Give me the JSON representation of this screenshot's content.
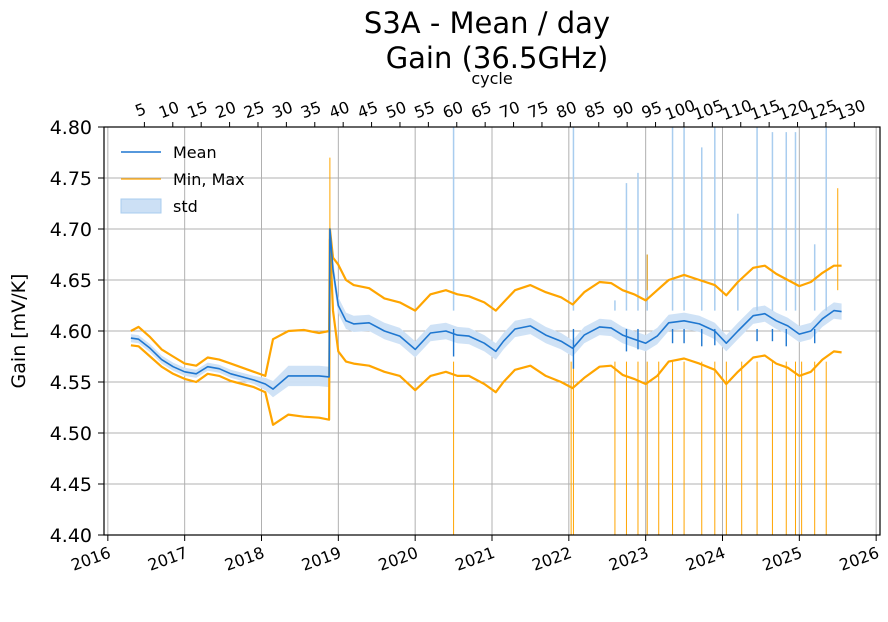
{
  "chart_data": {
    "type": "line",
    "title_line1": "S3A - Mean / day",
    "title_line2": "Gain (36.5GHz)",
    "ylabel": "Gain [mV/K]",
    "top_xlabel": "cycle",
    "ylim": [
      4.4,
      4.8
    ],
    "xlim": [
      2015.95,
      2026.05
    ],
    "y_ticks": [
      "4.40",
      "4.45",
      "4.50",
      "4.55",
      "4.60",
      "4.65",
      "4.70",
      "4.75",
      "4.80"
    ],
    "x_ticks": [
      "2016",
      "2017",
      "2018",
      "2019",
      "2020",
      "2021",
      "2022",
      "2023",
      "2024",
      "2025",
      "2026"
    ],
    "top_ticks": [
      "5",
      "10",
      "15",
      "20",
      "25",
      "30",
      "35",
      "40",
      "45",
      "50",
      "55",
      "60",
      "65",
      "70",
      "75",
      "80",
      "85",
      "90",
      "95",
      "100",
      "105",
      "110",
      "115",
      "120",
      "125",
      "130"
    ],
    "cycle_1_start_year": 2016.18,
    "days_per_cycle": 27,
    "legend": [
      "Mean",
      "Min, Max",
      "std"
    ],
    "colors": {
      "mean": "#1f77d0",
      "minmax": "#ffa500",
      "std": "#a9cdef",
      "grid": "#b0b0b0"
    },
    "mean": {
      "x": [
        2016.3,
        2016.4,
        2016.55,
        2016.7,
        2016.85,
        2017.0,
        2017.15,
        2017.3,
        2017.45,
        2017.6,
        2017.75,
        2017.9,
        2018.05,
        2018.15,
        2018.35,
        2018.55,
        2018.75,
        2018.88,
        2018.89,
        2018.93,
        2019.0,
        2019.1,
        2019.2,
        2019.4,
        2019.6,
        2019.8,
        2020.0,
        2020.2,
        2020.4,
        2020.55,
        2020.7,
        2020.9,
        2021.05,
        2021.15,
        2021.3,
        2021.5,
        2021.7,
        2021.9,
        2022.05,
        2022.2,
        2022.4,
        2022.55,
        2022.7,
        2022.85,
        2023.0,
        2023.15,
        2023.3,
        2023.5,
        2023.7,
        2023.9,
        2024.05,
        2024.2,
        2024.4,
        2024.55,
        2024.7,
        2024.85,
        2025.0,
        2025.15,
        2025.3,
        2025.45,
        2025.55
      ],
      "y": [
        4.593,
        4.592,
        4.583,
        4.572,
        4.565,
        4.56,
        4.558,
        4.565,
        4.563,
        4.558,
        4.555,
        4.552,
        4.548,
        4.543,
        4.556,
        4.556,
        4.556,
        4.555,
        4.7,
        4.66,
        4.625,
        4.61,
        4.607,
        4.608,
        4.6,
        4.595,
        4.582,
        4.598,
        4.6,
        4.596,
        4.595,
        4.588,
        4.58,
        4.59,
        4.602,
        4.605,
        4.596,
        4.59,
        4.583,
        4.596,
        4.604,
        4.603,
        4.596,
        4.592,
        4.588,
        4.595,
        4.608,
        4.61,
        4.607,
        4.6,
        4.588,
        4.6,
        4.615,
        4.617,
        4.61,
        4.605,
        4.597,
        4.6,
        4.612,
        4.62,
        4.619
      ]
    },
    "std_half_width": [
      0.004,
      0.004,
      0.004,
      0.004,
      0.004,
      0.004,
      0.004,
      0.004,
      0.004,
      0.004,
      0.004,
      0.004,
      0.006,
      0.008,
      0.01,
      0.01,
      0.01,
      0.01,
      0.01,
      0.01,
      0.008,
      0.008,
      0.008,
      0.008,
      0.008,
      0.008,
      0.008,
      0.008,
      0.008,
      0.008,
      0.008,
      0.008,
      0.008,
      0.008,
      0.008,
      0.008,
      0.008,
      0.008,
      0.008,
      0.008,
      0.008,
      0.008,
      0.008,
      0.008,
      0.008,
      0.008,
      0.008,
      0.008,
      0.008,
      0.008,
      0.008,
      0.008,
      0.008,
      0.008,
      0.008,
      0.008,
      0.008,
      0.008,
      0.008,
      0.008,
      0.008
    ],
    "max": {
      "x": [
        2016.3,
        2016.4,
        2016.55,
        2016.7,
        2016.85,
        2017.0,
        2017.15,
        2017.3,
        2017.45,
        2017.6,
        2017.75,
        2017.9,
        2018.05,
        2018.15,
        2018.35,
        2018.55,
        2018.75,
        2018.88,
        2018.89,
        2018.93,
        2019.0,
        2019.1,
        2019.2,
        2019.4,
        2019.6,
        2019.8,
        2020.0,
        2020.2,
        2020.4,
        2020.55,
        2020.7,
        2020.9,
        2021.05,
        2021.15,
        2021.3,
        2021.5,
        2021.7,
        2021.9,
        2022.05,
        2022.2,
        2022.4,
        2022.55,
        2022.7,
        2022.85,
        2023.0,
        2023.15,
        2023.3,
        2023.5,
        2023.7,
        2023.9,
        2024.05,
        2024.2,
        2024.4,
        2024.55,
        2024.7,
        2024.85,
        2025.0,
        2025.15,
        2025.3,
        2025.45,
        2025.55
      ],
      "y": [
        4.6,
        4.604,
        4.594,
        4.582,
        4.575,
        4.568,
        4.566,
        4.574,
        4.572,
        4.568,
        4.564,
        4.56,
        4.556,
        4.592,
        4.6,
        4.601,
        4.598,
        4.6,
        4.7,
        4.672,
        4.665,
        4.65,
        4.645,
        4.642,
        4.632,
        4.628,
        4.62,
        4.636,
        4.64,
        4.636,
        4.634,
        4.628,
        4.62,
        4.628,
        4.64,
        4.645,
        4.638,
        4.633,
        4.626,
        4.638,
        4.648,
        4.647,
        4.64,
        4.636,
        4.63,
        4.64,
        4.65,
        4.655,
        4.65,
        4.645,
        4.635,
        4.648,
        4.662,
        4.664,
        4.656,
        4.65,
        4.644,
        4.648,
        4.657,
        4.664,
        4.664
      ]
    },
    "min": {
      "x": [
        2016.3,
        2016.4,
        2016.55,
        2016.7,
        2016.85,
        2017.0,
        2017.15,
        2017.3,
        2017.45,
        2017.6,
        2017.75,
        2017.9,
        2018.05,
        2018.15,
        2018.35,
        2018.55,
        2018.75,
        2018.88,
        2018.89,
        2018.93,
        2019.0,
        2019.1,
        2019.2,
        2019.4,
        2019.6,
        2019.8,
        2020.0,
        2020.2,
        2020.4,
        2020.55,
        2020.7,
        2020.9,
        2021.05,
        2021.15,
        2021.3,
        2021.5,
        2021.7,
        2021.9,
        2022.05,
        2022.2,
        2022.4,
        2022.55,
        2022.7,
        2022.85,
        2023.0,
        2023.15,
        2023.3,
        2023.5,
        2023.7,
        2023.9,
        2024.05,
        2024.2,
        2024.4,
        2024.55,
        2024.7,
        2024.85,
        2025.0,
        2025.15,
        2025.3,
        2025.45,
        2025.55
      ],
      "y": [
        4.586,
        4.585,
        4.575,
        4.565,
        4.558,
        4.553,
        4.55,
        4.558,
        4.556,
        4.551,
        4.548,
        4.545,
        4.54,
        4.508,
        4.518,
        4.516,
        4.515,
        4.513,
        4.69,
        4.62,
        4.58,
        4.57,
        4.568,
        4.566,
        4.56,
        4.556,
        4.542,
        4.556,
        4.56,
        4.556,
        4.556,
        4.548,
        4.54,
        4.55,
        4.562,
        4.566,
        4.556,
        4.55,
        4.544,
        4.554,
        4.565,
        4.566,
        4.557,
        4.553,
        4.548,
        4.556,
        4.57,
        4.573,
        4.568,
        4.562,
        4.548,
        4.56,
        4.574,
        4.576,
        4.568,
        4.564,
        4.556,
        4.56,
        4.572,
        4.58,
        4.579
      ]
    },
    "min_spikes": {
      "x": [
        2020.5,
        2022.03,
        2022.06,
        2022.6,
        2022.75,
        2022.9,
        2023.02,
        2023.17,
        2023.35,
        2023.5,
        2023.73,
        2023.9,
        2024.05,
        2024.25,
        2024.45,
        2024.65,
        2024.83,
        2024.95,
        2025.03,
        2025.2,
        2025.35
      ],
      "y": [
        4.4,
        4.4,
        4.4,
        4.4,
        4.4,
        4.4,
        4.4,
        4.4,
        4.4,
        4.4,
        4.4,
        4.4,
        4.4,
        4.4,
        4.4,
        4.4,
        4.4,
        4.4,
        4.4,
        4.4,
        4.4
      ]
    },
    "max_spikes": {
      "x": [
        2018.89,
        2023.02,
        2025.5
      ],
      "y": [
        4.77,
        4.675,
        4.74
      ]
    },
    "std_spikes": {
      "x": [
        2020.5,
        2022.06,
        2022.6,
        2022.75,
        2022.9,
        2023.02,
        2023.35,
        2023.5,
        2023.73,
        2023.9,
        2024.2,
        2024.45,
        2024.65,
        2024.83,
        2024.95,
        2025.2,
        2025.35
      ],
      "y": [
        4.8,
        4.8,
        4.63,
        4.745,
        4.755,
        4.675,
        4.8,
        4.8,
        4.78,
        4.8,
        4.715,
        4.8,
        4.795,
        4.795,
        4.795,
        4.685,
        4.8
      ]
    },
    "mean_dips": {
      "x": [
        2020.5,
        2022.06,
        2022.75,
        2022.9,
        2023.35,
        2023.5,
        2023.73,
        2023.9,
        2024.45,
        2024.65,
        2024.83,
        2025.2
      ],
      "y": [
        4.575,
        4.563,
        4.58,
        4.582,
        4.588,
        4.588,
        4.585,
        4.586,
        4.59,
        4.59,
        4.585,
        4.588
      ]
    }
  }
}
